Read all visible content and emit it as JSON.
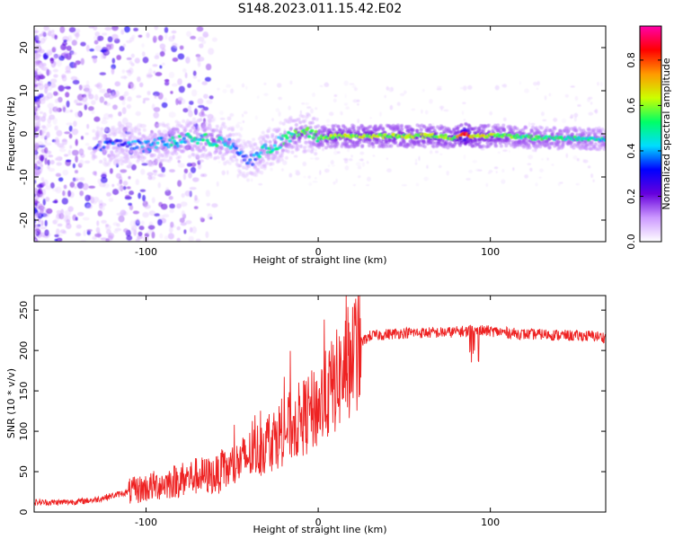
{
  "figure": {
    "title": "S148.2023.011.15.42.E02"
  },
  "chart_data": [
    {
      "type": "heatmap",
      "xlabel": "Height of straight line (km)",
      "ylabel": "Frequency (Hz)",
      "xlim": [
        -165,
        167
      ],
      "ylim": [
        -25,
        25
      ],
      "xticks": [
        -100,
        0,
        100
      ],
      "yticks": [
        -20,
        -10,
        0,
        10,
        20
      ],
      "colorbar": {
        "label": "Normalized spectral amplitude",
        "range": [
          0,
          0.95
        ],
        "ticks": [
          0.0,
          0.2,
          0.4,
          0.6,
          0.8
        ],
        "colors": [
          "#ffffff",
          "#cc99ff",
          "#6600dd",
          "#0000ff",
          "#00ddff",
          "#00ff66",
          "#ccff00",
          "#ff9900",
          "#ff0000",
          "#ff00aa"
        ]
      },
      "ridge": {
        "x": [
          -125,
          -110,
          -100,
          -90,
          -80,
          -70,
          -60,
          -50,
          -45,
          -40,
          -35,
          -30,
          -25,
          -20,
          -15,
          -10,
          -5,
          0,
          10,
          30,
          50,
          70,
          80,
          85,
          90,
          110,
          130,
          150,
          167
        ],
        "y": [
          -3,
          -2.5,
          -3,
          -2,
          -1.5,
          -1,
          -1.5,
          -2.5,
          -5,
          -6.5,
          -5,
          -3.5,
          -2.5,
          -1.5,
          -0.5,
          0,
          0.5,
          -1,
          -0.5,
          -0.5,
          -0.5,
          -0.5,
          -1,
          0,
          -0.5,
          -0.5,
          -1,
          -1,
          -1.2
        ],
        "amplitude": [
          0.3,
          0.35,
          0.4,
          0.4,
          0.45,
          0.45,
          0.5,
          0.4,
          0.35,
          0.35,
          0.4,
          0.45,
          0.45,
          0.5,
          0.5,
          0.55,
          0.5,
          0.55,
          0.6,
          0.6,
          0.6,
          0.6,
          0.6,
          0.9,
          0.65,
          0.55,
          0.5,
          0.5,
          0.45
        ]
      }
    },
    {
      "type": "line",
      "xlabel": "Height of straight line (km)",
      "ylabel": "SNR (10 * v/v)",
      "xlim": [
        -165,
        167
      ],
      "ylim": [
        0,
        268
      ],
      "xticks": [
        -100,
        0,
        100
      ],
      "yticks": [
        0,
        50,
        100,
        150,
        200,
        250
      ],
      "color": "#ee2222",
      "series": [
        {
          "x": [
            -165,
            -150,
            -140,
            -130,
            -120,
            -110,
            -100,
            -90,
            -80,
            -70,
            -60,
            -50,
            -40,
            -30,
            -20,
            -10,
            0,
            5,
            10,
            15,
            20,
            25,
            30,
            40,
            50,
            60,
            70,
            80,
            90,
            100,
            110,
            120,
            130,
            140,
            150,
            160,
            167
          ],
          "values": [
            12,
            12,
            13,
            15,
            20,
            25,
            30,
            35,
            40,
            45,
            45,
            55,
            70,
            85,
            100,
            115,
            130,
            145,
            160,
            175,
            195,
            210,
            218,
            220,
            222,
            222,
            222,
            223,
            225,
            224,
            222,
            220,
            220,
            219,
            218,
            218,
            216
          ]
        }
      ]
    }
  ]
}
